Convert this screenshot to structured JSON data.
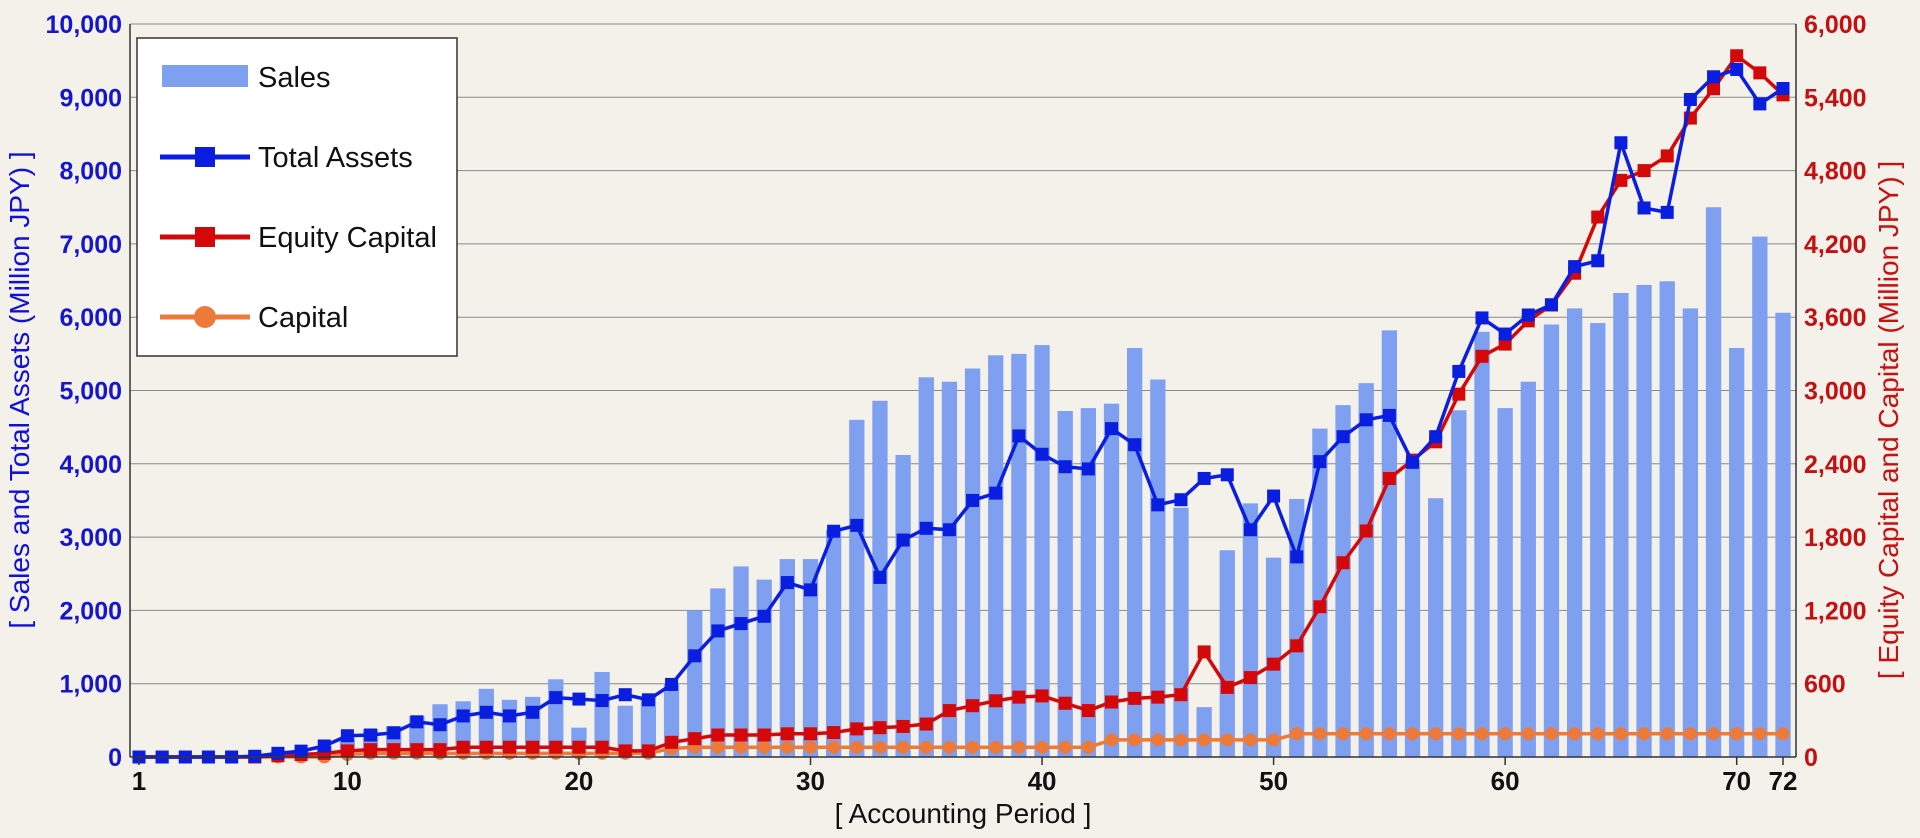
{
  "chart_data": {
    "type": "bar+line",
    "title": "",
    "xlabel": "[ Accounting Period ]",
    "ylabel_left": "[ Sales and Total Assets (Million JPY) ]",
    "ylabel_right": "[ Equity Capital and Capital (Million JPY) ]",
    "xlim": [
      1,
      72
    ],
    "ylim_left": [
      0,
      10000
    ],
    "ylim_right": [
      0,
      6000
    ],
    "grid": true,
    "legend_position": "top-left",
    "x_ticks": [
      1,
      10,
      20,
      30,
      40,
      50,
      60,
      70,
      72
    ],
    "y_ticks_left": [
      "0",
      "1,000",
      "2,000",
      "3,000",
      "4,000",
      "5,000",
      "6,000",
      "7,000",
      "8,000",
      "9,000",
      "10,000"
    ],
    "y_ticks_right": [
      "0",
      "600",
      "1,200",
      "1,800",
      "2,400",
      "3,000",
      "3,600",
      "4,200",
      "4,800",
      "5,400",
      "6,000"
    ],
    "periods": [
      1,
      2,
      3,
      4,
      5,
      6,
      7,
      8,
      9,
      10,
      11,
      12,
      13,
      14,
      15,
      16,
      17,
      18,
      19,
      20,
      21,
      22,
      23,
      24,
      25,
      26,
      27,
      28,
      29,
      30,
      31,
      32,
      33,
      34,
      35,
      36,
      37,
      38,
      39,
      40,
      41,
      42,
      43,
      44,
      45,
      46,
      47,
      48,
      49,
      50,
      51,
      52,
      53,
      54,
      55,
      56,
      57,
      58,
      59,
      60,
      61,
      62,
      63,
      64,
      65,
      66,
      67,
      68,
      69,
      70,
      71,
      72
    ],
    "series": [
      {
        "name": "Sales",
        "type": "bar",
        "axis": "left",
        "color": "#7f9ff0",
        "values": [
          0,
          0,
          0,
          0,
          0,
          20,
          50,
          80,
          150,
          250,
          380,
          420,
          560,
          720,
          760,
          930,
          780,
          820,
          1060,
          400,
          1160,
          700,
          820,
          1000,
          2000,
          2300,
          2600,
          2420,
          2700,
          2700,
          3100,
          4600,
          4860,
          4120,
          5180,
          5120,
          5300,
          5480,
          5500,
          5620,
          4720,
          4760,
          4820,
          5580,
          5150,
          3400,
          680,
          2820,
          3460,
          2720,
          3520,
          4480,
          4800,
          5100,
          5820,
          4050,
          3530,
          4730,
          5800,
          4760,
          5120,
          5900,
          6120,
          5920,
          6330,
          6440,
          6490,
          6120,
          7500,
          5580,
          7100,
          6060
        ]
      },
      {
        "name": "Total Assets",
        "type": "line",
        "axis": "left",
        "color": "#0a1ee0",
        "values": [
          0,
          0,
          0,
          0,
          0,
          10,
          50,
          80,
          150,
          290,
          300,
          330,
          480,
          440,
          560,
          610,
          560,
          610,
          810,
          790,
          770,
          850,
          780,
          990,
          1380,
          1720,
          1820,
          1920,
          2380,
          2280,
          3080,
          3160,
          2450,
          2960,
          3120,
          3100,
          3500,
          3600,
          4380,
          4130,
          3960,
          3930,
          4480,
          4260,
          3440,
          3510,
          3800,
          3850,
          3100,
          3560,
          2730,
          4030,
          4370,
          4600,
          4660,
          4020,
          4370,
          5260,
          5990,
          5770,
          6030,
          6170,
          6690,
          6770,
          8380,
          7490,
          7430,
          8970,
          9280,
          9380,
          8910,
          9120
        ]
      },
      {
        "name": "Equity Capital",
        "type": "line",
        "axis": "right",
        "color": "#d40808",
        "values": [
          0,
          0,
          0,
          0,
          0,
          0,
          10,
          20,
          30,
          50,
          60,
          60,
          60,
          60,
          80,
          80,
          80,
          80,
          80,
          80,
          80,
          50,
          50,
          120,
          150,
          180,
          180,
          180,
          190,
          190,
          200,
          230,
          240,
          250,
          270,
          380,
          420,
          460,
          490,
          500,
          440,
          380,
          450,
          480,
          490,
          510,
          860,
          570,
          650,
          760,
          910,
          1230,
          1590,
          1850,
          2280,
          2430,
          2580,
          2970,
          3280,
          3380,
          3570,
          3700,
          3960,
          4420,
          4720,
          4800,
          4920,
          5230,
          5470,
          5740,
          5600,
          5420
        ]
      },
      {
        "name": "Capital",
        "type": "line",
        "axis": "right",
        "color": "#ee7a3a",
        "values": [
          0,
          0,
          0,
          0,
          0,
          0,
          0,
          0,
          0,
          20,
          30,
          30,
          30,
          30,
          30,
          30,
          30,
          30,
          30,
          30,
          30,
          30,
          30,
          70,
          80,
          80,
          80,
          80,
          80,
          80,
          80,
          80,
          80,
          80,
          80,
          80,
          80,
          80,
          80,
          80,
          80,
          80,
          140,
          140,
          140,
          140,
          140,
          140,
          140,
          140,
          190,
          190,
          190,
          190,
          190,
          190,
          190,
          190,
          190,
          190,
          190,
          190,
          190,
          190,
          190,
          190,
          190,
          190,
          190,
          190,
          190,
          190
        ]
      }
    ]
  }
}
